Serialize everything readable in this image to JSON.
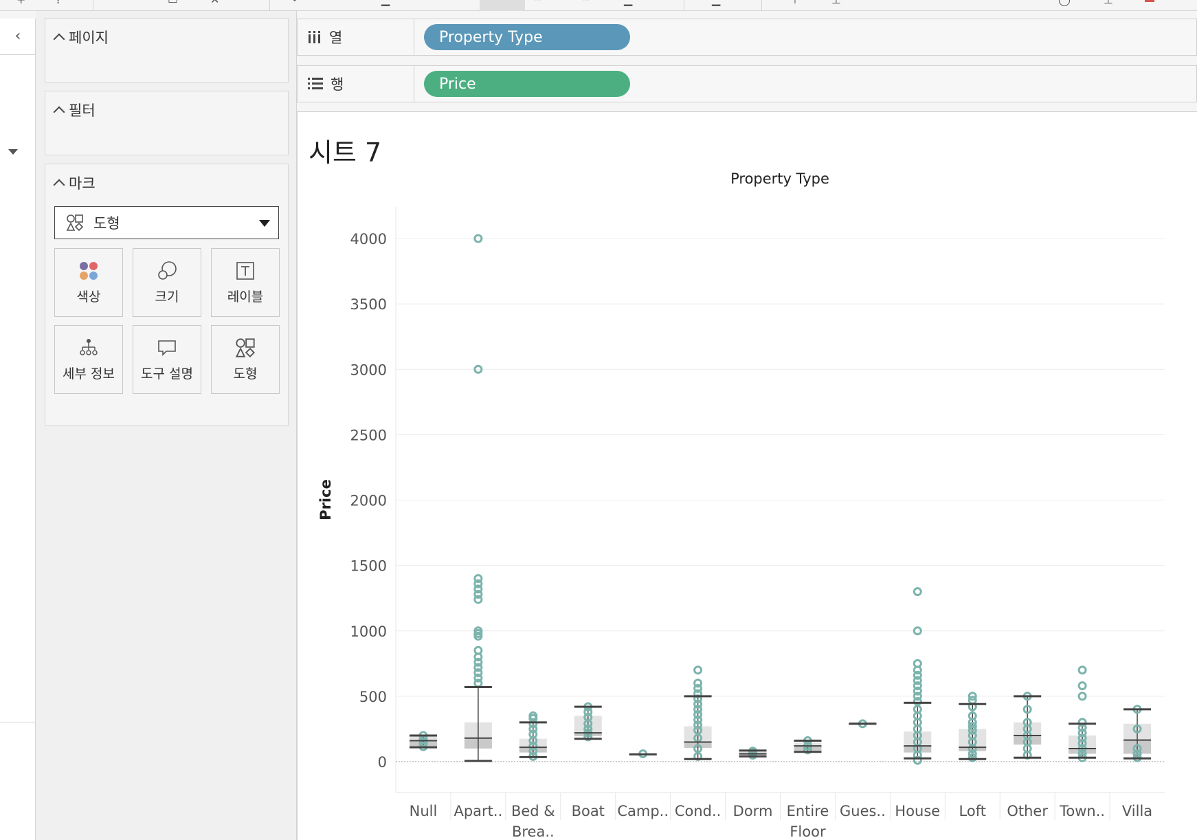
{
  "cards": {
    "pages": {
      "title": "페이지"
    },
    "filters": {
      "title": "필터"
    },
    "marks": {
      "title": "마크",
      "mark_type": "도형",
      "buttons": [
        "색상",
        "크기",
        "레이블",
        "세부 정보",
        "도구 설명",
        "도형"
      ]
    }
  },
  "shelves": {
    "columns": {
      "label": "열",
      "pill": "Property Type",
      "pill_color": "#5b97b8"
    },
    "rows": {
      "label": "행",
      "pill": "Price",
      "pill_color": "#4caf82"
    }
  },
  "sheet": {
    "title": "시트 7"
  },
  "colors": {
    "marker": "#7cb4ad",
    "whisker": "#444444",
    "box_dark": "#c9c9c9",
    "box_light": "#e3e3e3",
    "grid": "#ececec"
  },
  "chart_data": {
    "type": "box-plot",
    "title": "Property Type",
    "ylabel": "Price",
    "ylim": [
      0,
      4000
    ],
    "yticks": [
      0,
      500,
      1000,
      1500,
      2000,
      2500,
      3000,
      3500,
      4000
    ],
    "categories": [
      {
        "label": [
          "Null"
        ],
        "min": 110,
        "q1": 115,
        "median": 160,
        "q3": 195,
        "max": 200,
        "outliers": [
          115,
          145,
          170,
          200
        ]
      },
      {
        "label": [
          "Apart.."
        ],
        "min": 5,
        "q1": 100,
        "median": 180,
        "q3": 300,
        "max": 570,
        "outliers": [
          3000,
          4000,
          1400,
          1360,
          1320,
          1280,
          1240,
          1000,
          980,
          960,
          850,
          800,
          760,
          720,
          680,
          640,
          600
        ]
      },
      {
        "label": [
          "Bed &",
          "Brea.."
        ],
        "min": 35,
        "q1": 70,
        "median": 110,
        "q3": 175,
        "max": 300,
        "outliers": [
          350,
          330,
          290,
          250,
          210,
          160,
          120,
          80,
          40
        ]
      },
      {
        "label": [
          "Boat"
        ],
        "min": 175,
        "q1": 195,
        "median": 220,
        "q3": 350,
        "max": 420,
        "outliers": [
          420,
          380,
          340,
          290,
          250,
          220,
          190
        ]
      },
      {
        "label": [
          "Camp.."
        ],
        "min": 55,
        "q1": 55,
        "median": 55,
        "q3": 55,
        "max": 55,
        "outliers": [
          60
        ]
      },
      {
        "label": [
          "Cond.."
        ],
        "min": 20,
        "q1": 105,
        "median": 150,
        "q3": 270,
        "max": 500,
        "outliers": [
          700,
          600,
          560,
          520,
          480,
          440,
          400,
          360,
          320,
          280,
          240,
          180,
          100,
          40
        ]
      },
      {
        "label": [
          "Dorm"
        ],
        "min": 40,
        "q1": 50,
        "median": 60,
        "q3": 75,
        "max": 85,
        "outliers": [
          50,
          70,
          80
        ]
      },
      {
        "label": [
          "Entire",
          "Floor"
        ],
        "min": 75,
        "q1": 85,
        "median": 120,
        "q3": 145,
        "max": 160,
        "outliers": [
          160,
          120,
          90
        ]
      },
      {
        "label": [
          "Gues.."
        ],
        "min": 290,
        "q1": 290,
        "median": 290,
        "q3": 290,
        "max": 290,
        "outliers": [
          290
        ]
      },
      {
        "label": [
          "House"
        ],
        "min": 25,
        "q1": 70,
        "median": 120,
        "q3": 230,
        "max": 450,
        "outliers": [
          1300,
          1000,
          750,
          700,
          660,
          620,
          580,
          540,
          500,
          460,
          400,
          350,
          300,
          250,
          200,
          150,
          100,
          50,
          10
        ]
      },
      {
        "label": [
          "Loft"
        ],
        "min": 20,
        "q1": 80,
        "median": 110,
        "q3": 250,
        "max": 440,
        "outliers": [
          500,
          470,
          420,
          350,
          300,
          270,
          240,
          200,
          150,
          100,
          60,
          30
        ]
      },
      {
        "label": [
          "Other"
        ],
        "min": 30,
        "q1": 130,
        "median": 200,
        "q3": 300,
        "max": 500,
        "outliers": [
          500,
          400,
          300,
          250,
          200,
          150,
          100,
          50
        ]
      },
      {
        "label": [
          "Town.."
        ],
        "min": 30,
        "q1": 60,
        "median": 100,
        "q3": 200,
        "max": 290,
        "outliers": [
          700,
          580,
          500,
          300,
          260,
          220,
          180,
          140,
          100,
          60,
          30
        ]
      },
      {
        "label": [
          "Villa"
        ],
        "min": 25,
        "q1": 60,
        "median": 165,
        "q3": 290,
        "max": 400,
        "outliers": [
          400,
          250,
          100,
          60,
          30
        ]
      }
    ]
  }
}
